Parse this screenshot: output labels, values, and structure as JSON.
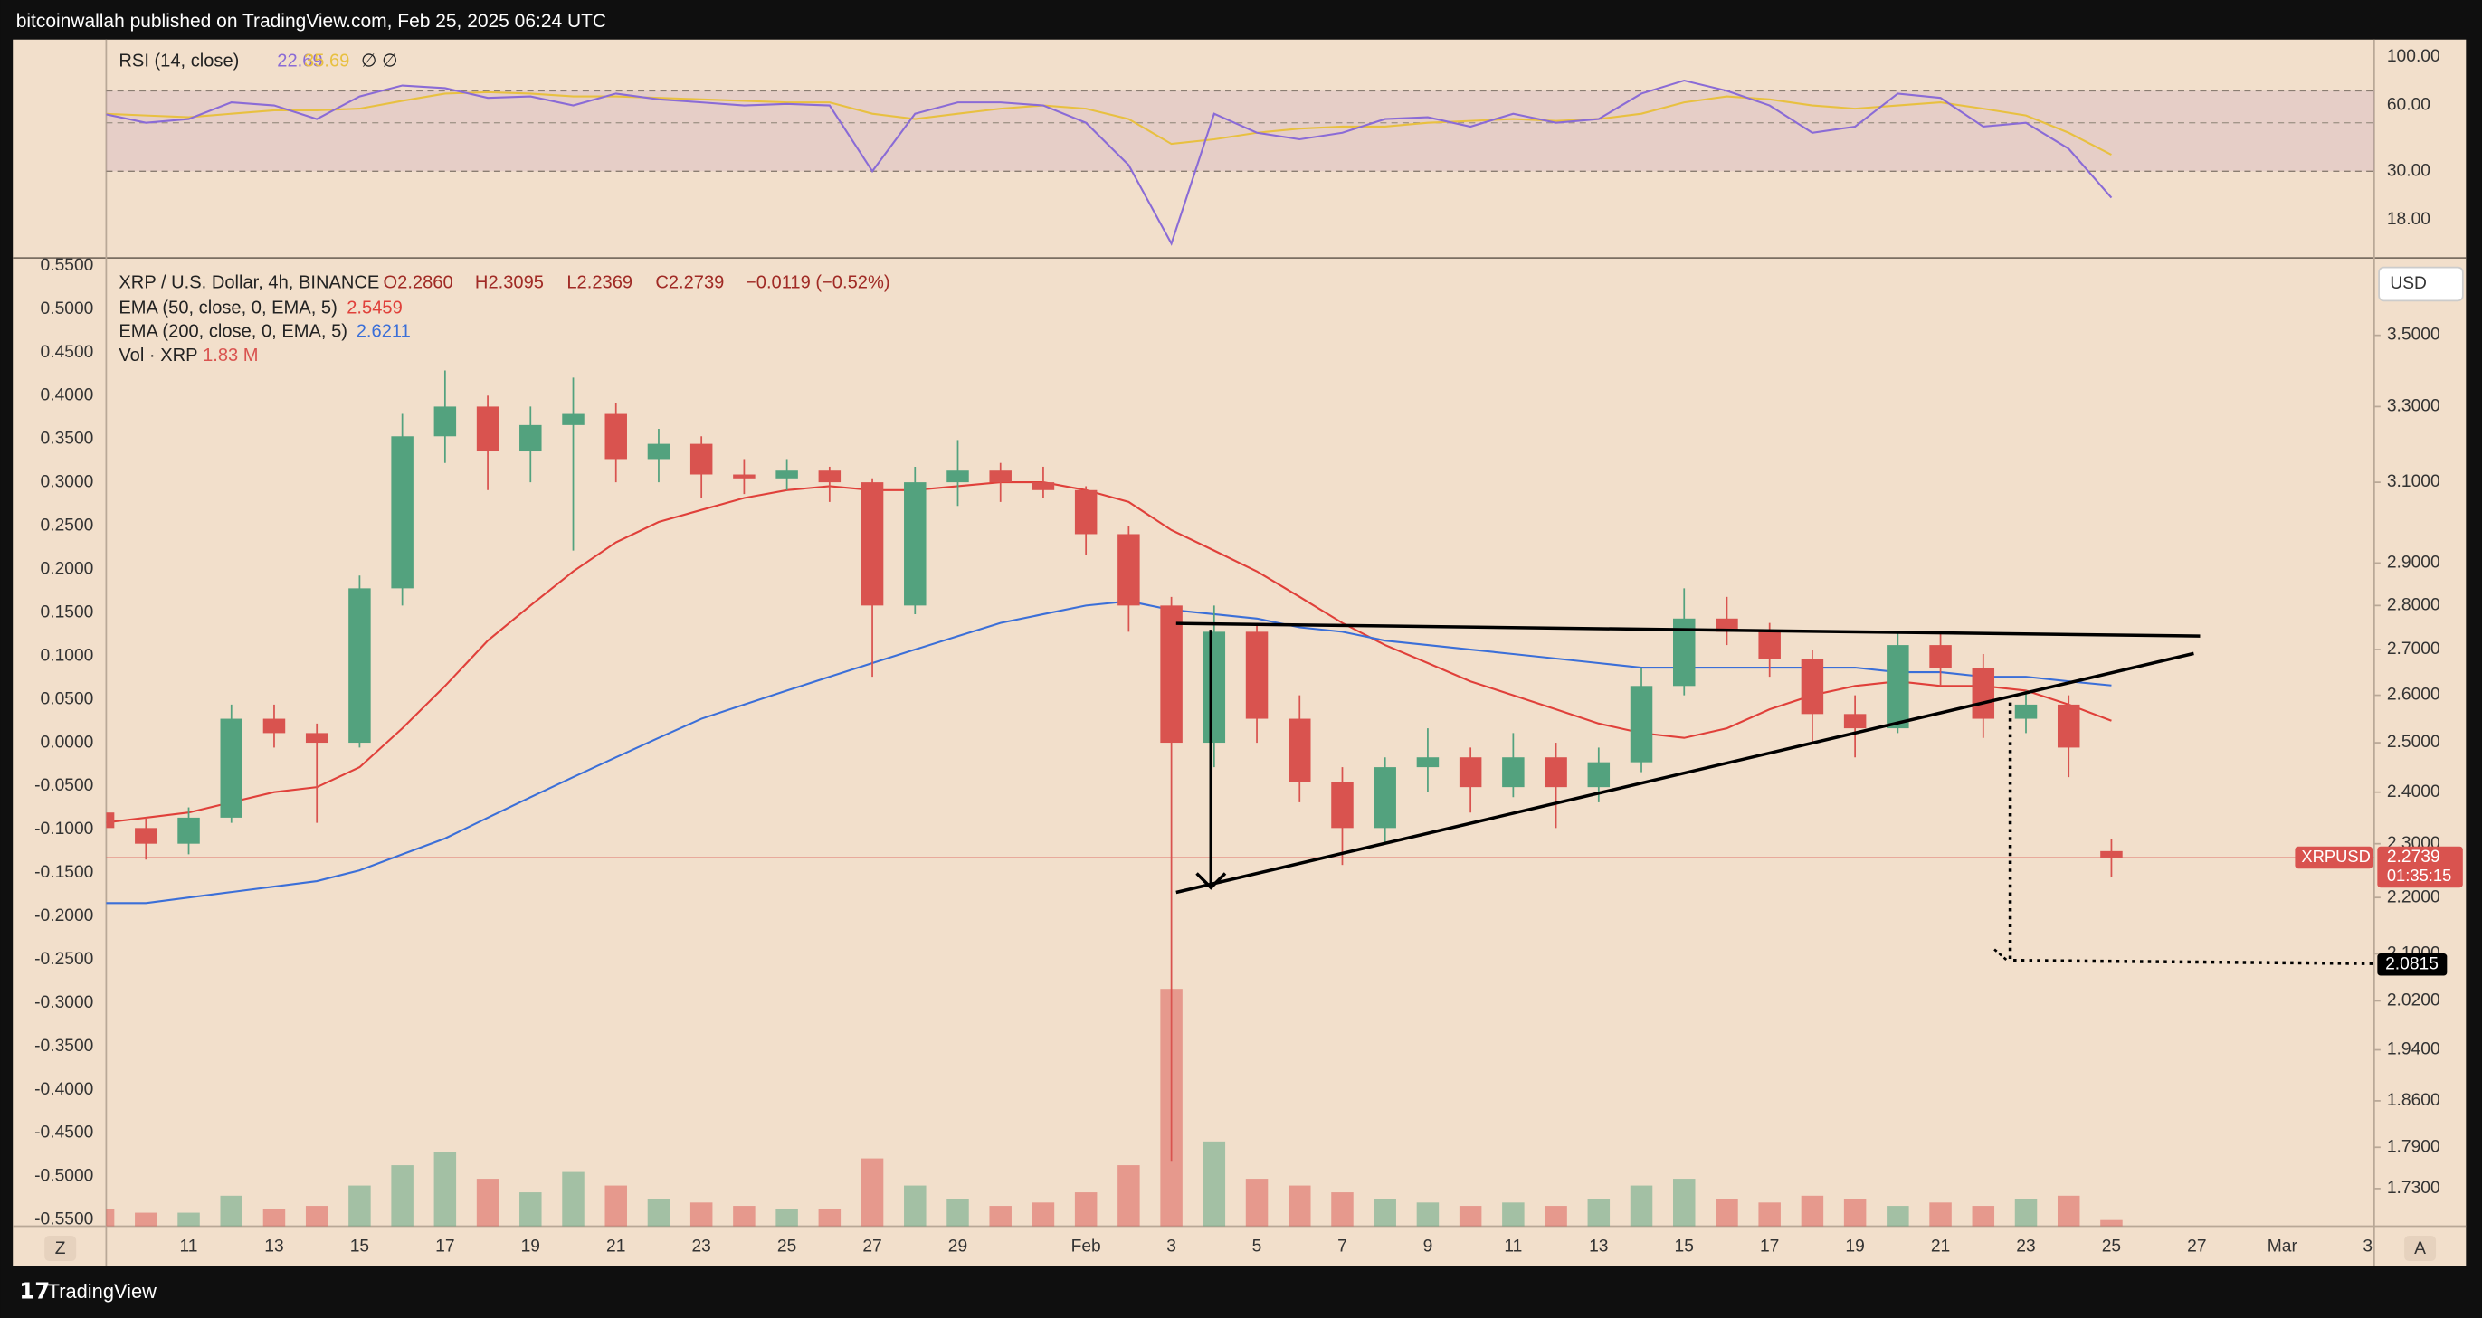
{
  "chart_data": {
    "type": "candlestick",
    "header": "bitcoinwallah published on TradingView.com, Feb 25, 2025 06:24 UTC",
    "title": "XRP / U.S. Dollar, 4h, BINANCE",
    "ohlc_labels": [
      "O2.2860",
      "H2.3095",
      "L2.2369",
      "C2.2739"
    ],
    "change_label": "−0.0119 (−0.52%)",
    "x": [
      9,
      10,
      11,
      12,
      13,
      14,
      15,
      16,
      17,
      18,
      19,
      20,
      21,
      22,
      23,
      24,
      25,
      26,
      27,
      28,
      29,
      30,
      31,
      32,
      33,
      34,
      35,
      36,
      37,
      38,
      39,
      40,
      41,
      42,
      43,
      44,
      45,
      46,
      47,
      48,
      49,
      50,
      51,
      52,
      53,
      54,
      55,
      56
    ],
    "open": [
      2.36,
      2.33,
      2.3,
      2.35,
      2.55,
      2.52,
      2.5,
      2.84,
      3.22,
      3.3,
      3.18,
      3.25,
      3.28,
      3.16,
      3.2,
      3.12,
      3.11,
      3.13,
      3.1,
      2.8,
      3.1,
      3.13,
      3.1,
      3.08,
      2.97,
      2.8,
      2.5,
      2.74,
      2.55,
      2.42,
      2.33,
      2.45,
      2.47,
      2.41,
      2.47,
      2.41,
      2.46,
      2.62,
      2.77,
      2.74,
      2.68,
      2.56,
      2.53,
      2.71,
      2.66,
      2.55,
      2.58,
      2.286
    ],
    "high": [
      2.38,
      2.35,
      2.37,
      2.58,
      2.58,
      2.54,
      2.87,
      3.28,
      3.4,
      3.33,
      3.3,
      3.38,
      3.31,
      3.24,
      3.22,
      3.16,
      3.16,
      3.14,
      3.11,
      3.14,
      3.21,
      3.15,
      3.14,
      3.09,
      2.99,
      2.82,
      2.8,
      2.76,
      2.6,
      2.45,
      2.47,
      2.53,
      2.49,
      2.52,
      2.5,
      2.49,
      2.66,
      2.84,
      2.82,
      2.76,
      2.7,
      2.6,
      2.74,
      2.74,
      2.69,
      2.61,
      2.6,
      2.3095
    ],
    "low": [
      2.31,
      2.27,
      2.28,
      2.34,
      2.49,
      2.34,
      2.49,
      2.8,
      3.15,
      3.08,
      3.1,
      2.93,
      3.1,
      3.1,
      3.06,
      3.07,
      3.08,
      3.05,
      2.64,
      2.78,
      3.04,
      3.05,
      3.06,
      2.92,
      2.74,
      1.77,
      2.45,
      2.5,
      2.38,
      2.26,
      2.3,
      2.4,
      2.36,
      2.39,
      2.33,
      2.38,
      2.44,
      2.6,
      2.71,
      2.64,
      2.5,
      2.47,
      2.52,
      2.62,
      2.51,
      2.52,
      2.43,
      2.2369
    ],
    "close": [
      2.33,
      2.3,
      2.35,
      2.55,
      2.52,
      2.5,
      2.84,
      3.22,
      3.3,
      3.18,
      3.25,
      3.28,
      3.16,
      3.2,
      3.12,
      3.11,
      3.13,
      3.1,
      2.8,
      3.1,
      3.13,
      3.1,
      3.08,
      2.97,
      2.8,
      2.5,
      2.74,
      2.55,
      2.42,
      2.33,
      2.45,
      2.47,
      2.41,
      2.47,
      2.41,
      2.46,
      2.62,
      2.77,
      2.74,
      2.68,
      2.56,
      2.53,
      2.71,
      2.66,
      2.55,
      2.58,
      2.49,
      2.2739
    ],
    "up_color": "#53a27e",
    "down_color": "#d9534f",
    "log_scale": true,
    "xlim": [
      9.07,
      62.15
    ],
    "xticks": [
      11,
      13,
      15,
      17,
      19,
      21,
      23,
      25,
      27,
      29,
      {
        "value": 32,
        "label": "Feb"
      },
      {
        "value": 34,
        "label": "3"
      },
      {
        "value": 36,
        "label": "5"
      },
      {
        "value": 38,
        "label": "7"
      },
      {
        "value": 40,
        "label": "9"
      },
      {
        "value": 42,
        "label": "11"
      },
      {
        "value": 44,
        "label": "13"
      },
      {
        "value": 46,
        "label": "15"
      },
      {
        "value": 48,
        "label": "17"
      },
      {
        "value": 50,
        "label": "19"
      },
      {
        "value": 52,
        "label": "21"
      },
      {
        "value": 54,
        "label": "23"
      },
      {
        "value": 56,
        "label": "25"
      },
      {
        "value": 58,
        "label": "27"
      },
      {
        "value": 60,
        "label": "Mar"
      },
      {
        "value": 62,
        "label": "3"
      }
    ],
    "ylim": [
      1.677,
      3.731
    ],
    "yticks": [
      {
        "value": 1.73,
        "label": "1.7300"
      },
      {
        "value": 1.79,
        "label": "1.7900"
      },
      {
        "value": 1.86,
        "label": "1.8600"
      },
      {
        "value": 1.94,
        "label": "1.9400"
      },
      {
        "value": 2.02,
        "label": "2.0200"
      },
      {
        "value": 2.1,
        "label": "2.1000"
      },
      {
        "value": 2.2,
        "label": "2.2000"
      },
      {
        "value": 2.3,
        "label": "2.3000"
      },
      {
        "value": 2.4,
        "label": "2.4000"
      },
      {
        "value": 2.5,
        "label": "2.5000"
      },
      {
        "value": 2.6,
        "label": "2.6000"
      },
      {
        "value": 2.7,
        "label": "2.7000"
      },
      {
        "value": 2.8,
        "label": "2.8000"
      },
      {
        "value": 2.9,
        "label": "2.9000"
      },
      {
        "value": 3.1,
        "label": "3.1000"
      },
      {
        "value": 3.3,
        "label": "3.3000"
      },
      {
        "value": 3.5,
        "label": "3.5000"
      }
    ],
    "left_ylim": [
      -0.5573,
      0.5591
    ],
    "left_yticks": [
      {
        "value": 0.55,
        "label": "0.5500"
      },
      {
        "value": 0.5,
        "label": "0.5000"
      },
      {
        "value": 0.45,
        "label": "0.4500"
      },
      {
        "value": 0.4,
        "label": "0.4000"
      },
      {
        "value": 0.35,
        "label": "0.3500"
      },
      {
        "value": 0.3,
        "label": "0.3000"
      },
      {
        "value": 0.25,
        "label": "0.2500"
      },
      {
        "value": 0.2,
        "label": "0.2000"
      },
      {
        "value": 0.15,
        "label": "0.1500"
      },
      {
        "value": 0.1,
        "label": "0.1000"
      },
      {
        "value": 0.05,
        "label": "0.0500"
      },
      {
        "value": 0,
        "label": "0.0000"
      },
      {
        "value": -0.05,
        "label": "-0.0500"
      },
      {
        "value": -0.1,
        "label": "-0.1000"
      },
      {
        "value": -0.15,
        "label": "-0.1500"
      },
      {
        "value": -0.2,
        "label": "-0.2000"
      },
      {
        "value": -0.25,
        "label": "-0.2500"
      },
      {
        "value": -0.3,
        "label": "-0.3000"
      },
      {
        "value": -0.35,
        "label": "-0.3500"
      },
      {
        "value": -0.4,
        "label": "-0.4000"
      },
      {
        "value": -0.45,
        "label": "-0.4500"
      },
      {
        "value": -0.5,
        "label": "-0.5000"
      },
      {
        "value": -0.55,
        "label": "-0.5500"
      }
    ],
    "currency": "USD",
    "symbol": "XRPUSD",
    "countdown": "01:35:15",
    "target": 2.0815,
    "indicators": [
      {
        "name": "EMA (50, close, 0, EMA, 5)",
        "color": "#e0403a",
        "values": [
          2.34,
          2.35,
          2.36,
          2.38,
          2.4,
          2.41,
          2.45,
          2.53,
          2.62,
          2.72,
          2.8,
          2.88,
          2.95,
          3.0,
          3.03,
          3.06,
          3.08,
          3.09,
          3.08,
          3.08,
          3.09,
          3.1,
          3.1,
          3.08,
          3.05,
          2.98,
          2.93,
          2.88,
          2.82,
          2.76,
          2.71,
          2.67,
          2.63,
          2.6,
          2.57,
          2.54,
          2.52,
          2.51,
          2.53,
          2.57,
          2.6,
          2.62,
          2.63,
          2.62,
          2.62,
          2.61,
          2.58,
          2.5459
        ]
      },
      {
        "name": "EMA (200, close, 0, EMA, 5)",
        "color": "#3b6fd8",
        "values": [
          2.19,
          2.19,
          2.2,
          2.21,
          2.22,
          2.23,
          2.25,
          2.28,
          2.31,
          2.35,
          2.39,
          2.43,
          2.47,
          2.51,
          2.55,
          2.58,
          2.61,
          2.64,
          2.67,
          2.7,
          2.73,
          2.76,
          2.78,
          2.8,
          2.81,
          2.79,
          2.78,
          2.77,
          2.75,
          2.74,
          2.72,
          2.71,
          2.7,
          2.69,
          2.68,
          2.67,
          2.66,
          2.66,
          2.66,
          2.66,
          2.66,
          2.66,
          2.65,
          2.65,
          2.64,
          2.64,
          2.63,
          2.6211
        ]
      }
    ],
    "volume": {
      "name": "Vol · XRP",
      "value_label": "1.83 M",
      "values": [
        5,
        4,
        4,
        9,
        5,
        6,
        12,
        18,
        22,
        14,
        10,
        16,
        12,
        8,
        7,
        6,
        5,
        5,
        20,
        12,
        8,
        6,
        7,
        10,
        18,
        70,
        25,
        14,
        12,
        10,
        8,
        7,
        6,
        7,
        6,
        8,
        12,
        14,
        8,
        7,
        9,
        8,
        6,
        7,
        6,
        8,
        9,
        1.83
      ]
    },
    "rsi": {
      "name": "RSI (14, close)",
      "color": "#8a6bd6",
      "ma_color": "#e8c040",
      "icons": "∅ ∅",
      "log_scale": true,
      "ylim": [
        12.04,
        120.1
      ],
      "yticks": [
        {
          "value": 18,
          "label": "18.00"
        },
        {
          "value": 30,
          "label": "30.00"
        },
        {
          "value": 60,
          "label": "60.00"
        },
        {
          "value": 100,
          "label": "100.00"
        }
      ],
      "band": [
        30,
        70
      ],
      "midline": 50,
      "values": [
        55,
        50,
        52,
        62,
        60,
        52,
        66,
        74,
        72,
        65,
        66,
        60,
        68,
        64,
        62,
        60,
        61,
        60,
        30,
        55,
        62,
        62,
        60,
        50,
        32,
        14,
        55,
        45,
        42,
        45,
        52,
        53,
        48,
        55,
        50,
        52,
        68,
        78,
        70,
        60,
        45,
        48,
        68,
        65,
        48,
        50,
        38,
        22.69
      ],
      "ma_values": [
        55,
        54,
        53,
        55,
        57,
        57,
        58,
        63,
        68,
        69,
        68,
        66,
        66,
        65,
        64,
        63,
        62,
        62,
        55,
        52,
        55,
        58,
        60,
        58,
        52,
        40,
        42,
        45,
        47,
        48,
        48,
        50,
        51,
        52,
        51,
        52,
        55,
        62,
        66,
        64,
        60,
        58,
        60,
        62,
        58,
        54,
        45,
        35.69
      ]
    },
    "left_button": "Z",
    "right_button": "A",
    "brand": "TradingView"
  }
}
